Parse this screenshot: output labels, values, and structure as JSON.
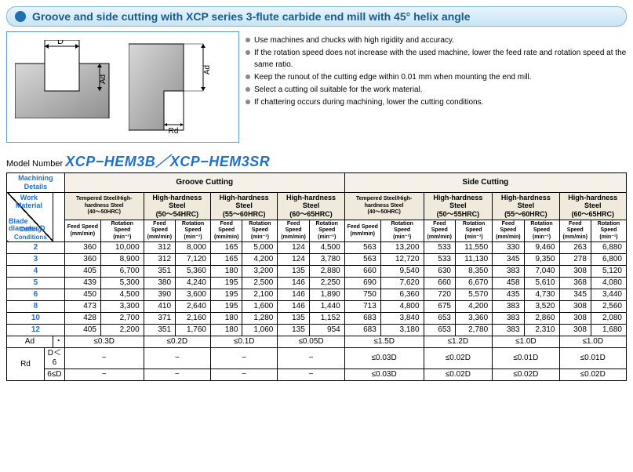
{
  "title": "Groove and side cutting with XCP series 3-flute carbide end mill with 45° helix angle",
  "diagram": {
    "D": "D",
    "Ad": "Ad",
    "Rd": "Rd"
  },
  "notes": [
    "Use machines and chucks with high rigidity and accuracy.",
    "If the rotation speed does not increase with the used machine, lower the feed rate and rotation speed at the same ratio.",
    "Keep the runout of the cutting edge within 0.01 mm when mounting the end mill.",
    "Select a cutting oil suitable for the work material.",
    "If chattering occurs during machining, lower the cutting conditions."
  ],
  "model": {
    "label": "Model Number",
    "name": "XCP−HEM3B／XCP−HEM3SR"
  },
  "table": {
    "corner": {
      "top": "Machining Details",
      "work": "Work Material",
      "blade": "Blade\ndiameter D",
      "cond": "Cutting Conditions"
    },
    "sections": [
      "Groove Cutting",
      "Side Cutting"
    ],
    "materials_groove": [
      "Tempered Steel/High-hardness Steel\n(40～50HRC)",
      "High-hardness Steel\n(50～54HRC)",
      "High-hardness Steel\n(55～60HRC)",
      "High-hardness Steel\n(60～65HRC)"
    ],
    "materials_side": [
      "Tempered Steel/High-hardness Steel\n(40～50HRC)",
      "High-hardness Steel\n(50～55HRC)",
      "High-hardness Steel\n(55～60HRC)",
      "High-hardness Steel\n(60～65HRC)"
    ],
    "col_pair": [
      "Feed Speed\n(mm/min)",
      "Rotation Speed\n(min⁻¹)"
    ],
    "diameters": [
      "2",
      "3",
      "4",
      "5",
      "6",
      "8",
      "10",
      "12"
    ],
    "rows": [
      [
        "360",
        "10,000",
        "312",
        "8,000",
        "165",
        "5,000",
        "124",
        "4,500",
        "563",
        "13,200",
        "533",
        "11,550",
        "330",
        "9,460",
        "263",
        "6,880"
      ],
      [
        "360",
        "8,900",
        "312",
        "7,120",
        "165",
        "4,200",
        "124",
        "3,780",
        "563",
        "12,720",
        "533",
        "11,130",
        "345",
        "9,350",
        "278",
        "6,800"
      ],
      [
        "405",
        "6,700",
        "351",
        "5,360",
        "180",
        "3,200",
        "135",
        "2,880",
        "660",
        "9,540",
        "630",
        "8,350",
        "383",
        "7,040",
        "308",
        "5,120"
      ],
      [
        "439",
        "5,300",
        "380",
        "4,240",
        "195",
        "2,500",
        "146",
        "2,250",
        "690",
        "7,620",
        "660",
        "6,670",
        "458",
        "5,610",
        "368",
        "4,080"
      ],
      [
        "450",
        "4,500",
        "390",
        "3,600",
        "195",
        "2,100",
        "146",
        "1,890",
        "750",
        "6,360",
        "720",
        "5,570",
        "435",
        "4,730",
        "345",
        "3,440"
      ],
      [
        "473",
        "3,300",
        "410",
        "2,640",
        "195",
        "1,600",
        "146",
        "1,440",
        "713",
        "4,800",
        "675",
        "4,200",
        "383",
        "3,520",
        "308",
        "2,560"
      ],
      [
        "428",
        "2,700",
        "371",
        "2,160",
        "180",
        "1,280",
        "135",
        "1,152",
        "683",
        "3,840",
        "653",
        "3,360",
        "383",
        "2,860",
        "308",
        "2,080"
      ],
      [
        "405",
        "2,200",
        "351",
        "1,760",
        "180",
        "1,060",
        "135",
        "954",
        "683",
        "3,180",
        "653",
        "2,780",
        "383",
        "2,310",
        "308",
        "1,680"
      ]
    ],
    "ad_row": {
      "label": "Ad",
      "dot": "・",
      "vals": [
        "≤0.3D",
        "≤0.2D",
        "≤0.1D",
        "≤0.05D",
        "≤1.5D",
        "≤1.2D",
        "≤1.0D",
        "≤1.0D"
      ]
    },
    "rd_rows": {
      "label": "Rd",
      "r1": {
        "cond": "D＜6",
        "vals": [
          "−",
          "−",
          "−",
          "−",
          "≤0.03D",
          "≤0.02D",
          "≤0.01D",
          "≤0.01D"
        ]
      },
      "r2": {
        "cond": "6≤D",
        "vals": [
          "−",
          "−",
          "−",
          "−",
          "≤0.03D",
          "≤0.02D",
          "≤0.02D",
          "≤0.02D"
        ]
      }
    }
  },
  "colors": {
    "blue": "#2070d0",
    "header_bg": "#f0eadd"
  }
}
